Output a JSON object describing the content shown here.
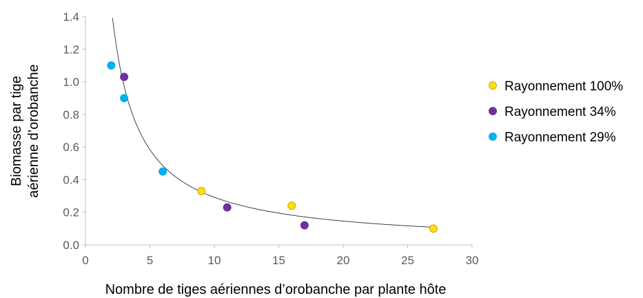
{
  "chart_data": {
    "type": "scatter",
    "xlabel": "Nombre de tiges aériennes  d’orobanche par plante hôte",
    "ylabel_lines": [
      "Biomasse par tige",
      "aérienne d’orobanche"
    ],
    "xlim": [
      0,
      30
    ],
    "ylim": [
      0.0,
      1.4
    ],
    "x_ticks": [
      "0",
      "5",
      "10",
      "15",
      "20",
      "25",
      "30"
    ],
    "y_ticks": [
      "0.0",
      "0.2",
      "0.4",
      "0.6",
      "0.8",
      "1.0",
      "1.2",
      "1.4"
    ],
    "grid": false,
    "legend_position": "right",
    "series": [
      {
        "name": "Rayonnement 100%",
        "color": "#FFE000",
        "edge": "#C9A227",
        "points": [
          [
            9,
            0.33
          ],
          [
            16,
            0.24
          ],
          [
            27,
            0.1
          ]
        ]
      },
      {
        "name": "Rayonnement 34%",
        "color": "#7030A0",
        "edge": "#7030A0",
        "points": [
          [
            3,
            1.03
          ],
          [
            11,
            0.23
          ],
          [
            17,
            0.12
          ]
        ]
      },
      {
        "name": "Rayonnement 29%",
        "color": "#00B0F0",
        "edge": "#00B0F0",
        "points": [
          [
            2,
            1.1
          ],
          [
            3,
            0.9
          ],
          [
            6,
            0.45
          ]
        ]
      }
    ],
    "trendline": {
      "type": "power",
      "coefficient": 2.92,
      "exponent": -1.0,
      "x_range": [
        2.1,
        27
      ],
      "color": "#404040"
    }
  }
}
